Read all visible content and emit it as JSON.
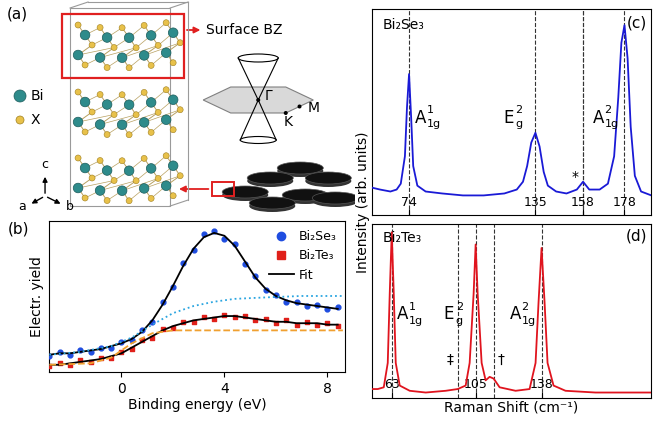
{
  "diagram": {
    "panel_label": "(a)",
    "atoms": [
      {
        "label": "Bi",
        "color": "#2e8b8b"
      },
      {
        "label": "X",
        "color": "#e8c14a"
      }
    ],
    "axes": [
      "a",
      "b",
      "c"
    ],
    "inset": "Surface BZ",
    "points": [
      "Γ",
      "K",
      "M"
    ]
  },
  "chart_data": [
    {
      "type": "line",
      "panel_label": "(b)",
      "xlabel": "Binding energy (eV)",
      "ylabel": "Electr. yield",
      "xlim": [
        -2.8,
        8.7
      ],
      "ylim": [
        0,
        1.05
      ],
      "xticks": [
        0,
        4,
        8
      ],
      "yticks": [],
      "tick_labels": "x",
      "legend": "upper right",
      "series": [
        {
          "name": "Bi₂Se₃",
          "type": "scatter",
          "color": "#1f4de0",
          "marker": "circle",
          "x": [
            -2.8,
            -2.4,
            -2.0,
            -1.6,
            -1.2,
            -0.8,
            -0.4,
            0.0,
            0.4,
            0.8,
            1.2,
            1.6,
            2.0,
            2.4,
            2.8,
            3.2,
            3.6,
            4.0,
            4.4,
            4.8,
            5.2,
            5.6,
            6.0,
            6.4,
            6.8,
            7.2,
            7.6,
            8.0,
            8.4
          ],
          "values": [
            0.11,
            0.14,
            0.12,
            0.15,
            0.14,
            0.17,
            0.17,
            0.21,
            0.22,
            0.29,
            0.35,
            0.49,
            0.59,
            0.76,
            0.85,
            0.96,
            0.98,
            0.93,
            0.89,
            0.75,
            0.67,
            0.57,
            0.54,
            0.49,
            0.49,
            0.46,
            0.47,
            0.44,
            0.45
          ]
        },
        {
          "name": "Bi₂Te₃",
          "type": "scatter",
          "color": "#e0201a",
          "marker": "square",
          "x": [
            -2.8,
            -2.4,
            -2.0,
            -1.6,
            -1.2,
            -0.8,
            -0.4,
            0.0,
            0.4,
            0.8,
            1.2,
            1.6,
            2.0,
            2.4,
            2.8,
            3.2,
            3.6,
            4.0,
            4.4,
            4.8,
            5.2,
            5.6,
            6.0,
            6.4,
            6.8,
            7.2,
            7.6,
            8.0,
            8.4
          ],
          "values": [
            0.04,
            0.06,
            0.05,
            0.08,
            0.07,
            0.1,
            0.1,
            0.14,
            0.16,
            0.22,
            0.24,
            0.3,
            0.31,
            0.35,
            0.35,
            0.38,
            0.37,
            0.4,
            0.38,
            0.39,
            0.36,
            0.37,
            0.34,
            0.36,
            0.33,
            0.35,
            0.33,
            0.34,
            0.32
          ]
        },
        {
          "name": "Fit",
          "type": "line",
          "color": "#000000",
          "line_style": "solid",
          "x": [
            -2.8,
            -2.4,
            -2.0,
            -1.6,
            -1.2,
            -0.8,
            -0.4,
            0.0,
            0.4,
            0.8,
            1.2,
            1.6,
            2.0,
            2.4,
            2.8,
            3.2,
            3.6,
            4.0,
            4.4,
            4.8,
            5.2,
            5.6,
            6.0,
            6.4,
            6.8,
            7.2,
            7.6,
            8.0,
            8.4
          ],
          "values": [
            0.12,
            0.13,
            0.13,
            0.14,
            0.15,
            0.16,
            0.18,
            0.2,
            0.23,
            0.28,
            0.36,
            0.47,
            0.6,
            0.74,
            0.86,
            0.94,
            0.97,
            0.95,
            0.88,
            0.77,
            0.66,
            0.58,
            0.53,
            0.5,
            0.48,
            0.47,
            0.46,
            0.45,
            0.44
          ]
        },
        {
          "type": "line",
          "color": "#000000",
          "line_style": "solid",
          "x": [
            -2.8,
            -2.4,
            -2.0,
            -1.6,
            -1.2,
            -0.8,
            -0.4,
            0.0,
            0.4,
            0.8,
            1.2,
            1.6,
            2.0,
            2.4,
            2.8,
            3.2,
            3.6,
            4.0,
            4.4,
            4.8,
            5.2,
            5.6,
            6.0,
            6.4,
            6.8,
            7.2,
            7.6,
            8.0,
            8.4
          ],
          "values": [
            0.05,
            0.05,
            0.06,
            0.07,
            0.08,
            0.09,
            0.11,
            0.13,
            0.17,
            0.21,
            0.25,
            0.29,
            0.32,
            0.34,
            0.36,
            0.37,
            0.38,
            0.39,
            0.39,
            0.38,
            0.37,
            0.36,
            0.35,
            0.35,
            0.34,
            0.34,
            0.34,
            0.33,
            0.33
          ]
        },
        {
          "type": "line",
          "color": "#2aa5e0",
          "line_style": "dotted",
          "x": [
            -2.8,
            -1.6,
            -0.4,
            0.4,
            1.2,
            2.0,
            2.8,
            3.6,
            4.4,
            5.6,
            7.0,
            8.6
          ],
          "values": [
            0.12,
            0.14,
            0.18,
            0.24,
            0.33,
            0.41,
            0.46,
            0.49,
            0.51,
            0.52,
            0.53,
            0.53
          ]
        },
        {
          "type": "line",
          "color": "#f0a030",
          "line_style": "dashed",
          "x": [
            -2.8,
            -1.2,
            -0.4,
            0.4,
            1.2,
            2.0,
            8.6
          ],
          "values": [
            0.05,
            0.06,
            0.1,
            0.2,
            0.27,
            0.29,
            0.29
          ]
        }
      ]
    },
    {
      "type": "line",
      "panel_label": "(c)",
      "title": "Bi₂Se₃",
      "ylabel": "Intensity (arb. units)",
      "color": "#1a1ad6",
      "xlim": [
        56,
        191
      ],
      "ylim": [
        0,
        1.05
      ],
      "xticks": [
        74,
        135,
        158,
        178
      ],
      "yticks": [],
      "tick_labels": "x",
      "x": [
        56,
        60,
        65,
        68,
        70,
        72,
        73,
        74,
        75,
        76,
        78,
        82,
        90,
        100,
        110,
        120,
        126,
        129,
        131,
        133,
        135,
        137,
        139,
        141,
        145,
        150,
        155,
        158,
        161,
        166,
        170,
        173,
        175,
        176.5,
        178,
        179.5,
        181,
        183,
        186,
        191
      ],
      "values": [
        0.14,
        0.13,
        0.12,
        0.13,
        0.16,
        0.3,
        0.55,
        0.72,
        0.5,
        0.25,
        0.15,
        0.12,
        0.11,
        0.1,
        0.1,
        0.11,
        0.13,
        0.17,
        0.25,
        0.37,
        0.42,
        0.35,
        0.22,
        0.15,
        0.12,
        0.11,
        0.13,
        0.17,
        0.13,
        0.13,
        0.16,
        0.3,
        0.6,
        0.88,
        0.97,
        0.8,
        0.45,
        0.2,
        0.12,
        0.1
      ],
      "peaks": [
        {
          "x": 74,
          "label": {
            "base": "A",
            "sub": "1g",
            "sup": "1"
          }
        },
        {
          "x": 135,
          "label": {
            "base": "E",
            "sub": "g",
            "sup": "2"
          }
        },
        {
          "x": 178,
          "label": {
            "base": "A",
            "sub": "1g",
            "sup": "2"
          }
        }
      ],
      "annotations": [
        {
          "text": "*",
          "x": 158
        }
      ]
    },
    {
      "type": "line",
      "panel_label": "(d)",
      "title": "Bi₂Te₃",
      "xlabel": "Raman Shift (cm⁻¹)",
      "color": "#e0141e",
      "xlim": [
        53,
        193
      ],
      "ylim": [
        0,
        1.0
      ],
      "xticks": [
        63,
        105,
        138
      ],
      "yticks": [],
      "tick_labels": "x",
      "x": [
        53,
        56,
        59,
        61,
        62,
        63,
        64,
        65,
        67,
        72,
        80,
        90,
        96,
        100,
        102,
        104,
        105,
        106,
        108,
        110,
        112,
        114,
        117,
        125,
        132,
        135,
        136.5,
        138,
        139.5,
        141,
        144,
        150,
        165,
        180,
        193
      ],
      "values": [
        0.05,
        0.05,
        0.06,
        0.2,
        0.6,
        0.95,
        0.6,
        0.2,
        0.07,
        0.04,
        0.03,
        0.04,
        0.05,
        0.07,
        0.2,
        0.6,
        0.88,
        0.6,
        0.2,
        0.1,
        0.12,
        0.11,
        0.06,
        0.04,
        0.05,
        0.2,
        0.55,
        0.86,
        0.55,
        0.2,
        0.07,
        0.04,
        0.03,
        0.03,
        0.03
      ],
      "peaks": [
        {
          "x": 63,
          "label": {
            "base": "A",
            "sub": "1g",
            "sup": "1"
          }
        },
        {
          "x": 105,
          "label": {
            "base": "E",
            "sub": "g",
            "sup": "2"
          }
        },
        {
          "x": 138,
          "label": {
            "base": "A",
            "sub": "1g",
            "sup": "2"
          }
        }
      ],
      "annotations": [
        {
          "text": "‡",
          "x": 96
        },
        {
          "text": "†",
          "x": 114
        }
      ]
    }
  ]
}
